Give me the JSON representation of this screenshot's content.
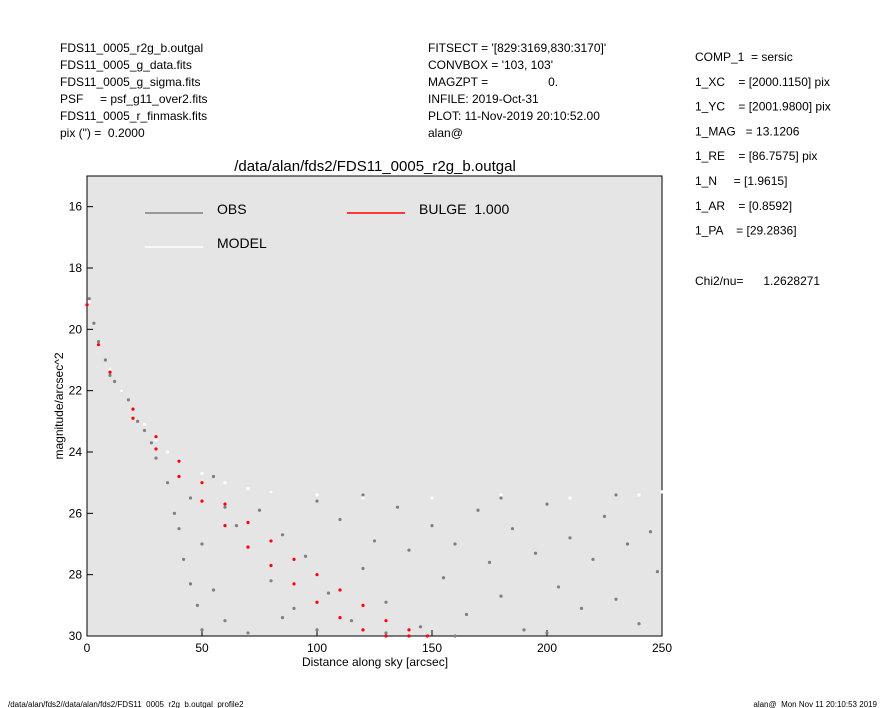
{
  "header": {
    "left": [
      "FDS11_0005_r2g_b.outgal",
      "FDS11_0005_g_data.fits",
      "FDS11_0005_g_sigma.fits",
      "PSF     = psf_g11_over2.fits",
      "FDS11_0005_r_finmask.fits",
      "pix (\") =  0.2000"
    ],
    "center": [
      "FITSECT = '[829:3169,830:3170]'",
      "CONVBOX = '103, 103'",
      "MAGZPT =                  0.",
      "INFILE: 2019-Oct-31",
      "PLOT: 11-Nov-2019 20:10:52.00",
      "alan@"
    ],
    "params": [
      "COMP_1  = sersic",
      "1_XC    = [2000.1150] pix",
      "1_YC    = [2001.9800] pix",
      "1_MAG   = 13.1206",
      "1_RE    = [86.7575] pix",
      "1_N     = [1.9615]",
      "1_AR    = [0.8592]",
      "1_PA    = [29.2836]"
    ],
    "chi2": "Chi2/nu=      1.2628271"
  },
  "footer": {
    "left": "/data/alan/fds2//data/alan/fds2/FDS11_0005_r2g_b.outgal_profile2",
    "right": "alan@  Mon Nov 11 20:10:53 2019"
  },
  "chart_data": {
    "type": "scatter",
    "title": "/data/alan/fds2/FDS11_0005_r2g_b.outgal",
    "x_label": "Distance along sky [arcsec]",
    "y_label": "magnitude/arcsec^2",
    "xlim": [
      0,
      250
    ],
    "ylim": [
      30,
      15
    ],
    "xticks": [
      0,
      50,
      100,
      150,
      200,
      250
    ],
    "yticks": [
      16,
      18,
      20,
      22,
      24,
      26,
      28,
      30
    ],
    "series": [
      {
        "name": "OBS",
        "color": "#808080",
        "x": [
          1,
          3,
          5,
          8,
          10,
          12,
          15,
          18,
          20,
          22,
          25,
          28,
          30,
          35,
          38,
          40,
          42,
          45,
          48,
          50,
          45,
          55,
          60,
          65,
          70,
          75,
          80,
          85,
          90,
          95,
          100,
          105,
          110,
          115,
          120,
          125,
          130,
          135,
          140,
          145,
          150,
          155,
          160,
          165,
          170,
          175,
          180,
          185,
          190,
          195,
          200,
          205,
          210,
          215,
          220,
          225,
          230,
          235,
          240,
          245,
          248,
          60,
          70,
          85,
          100,
          130,
          160,
          200,
          80,
          120,
          180,
          230,
          50,
          55
        ],
        "values": [
          19,
          19.8,
          20.4,
          21,
          21.5,
          21.7,
          22,
          22.3,
          22.6,
          23,
          23.3,
          23.7,
          24.2,
          25,
          26,
          26.5,
          27.5,
          28.3,
          29,
          29.8,
          25.5,
          24.8,
          25.8,
          26.4,
          27.1,
          25.9,
          28.2,
          26.7,
          29.1,
          27.4,
          25.6,
          28.6,
          26.2,
          29.5,
          27.8,
          26.9,
          28.9,
          25.8,
          27.2,
          29.7,
          26.4,
          28.1,
          27,
          29.3,
          25.9,
          27.6,
          28.7,
          26.5,
          29.8,
          27.3,
          25.7,
          28.4,
          26.8,
          29.1,
          27.5,
          26.1,
          28.8,
          27,
          29.6,
          26.6,
          27.9,
          29.5,
          29.9,
          29.4,
          29.8,
          29.9,
          30,
          29.9,
          25.3,
          25.4,
          25.5,
          25.4,
          27,
          28.5
        ]
      },
      {
        "name": "MODEL",
        "color": "#ffffff",
        "x": [
          1,
          5,
          10,
          15,
          20,
          25,
          30,
          35,
          40,
          50,
          60,
          70,
          80,
          100,
          120,
          150,
          180,
          210,
          240,
          250
        ],
        "values": [
          19.1,
          20.5,
          21.3,
          22,
          22.6,
          23.1,
          23.6,
          24,
          24.3,
          24.7,
          25,
          25.2,
          25.3,
          25.4,
          25.5,
          25.5,
          25.4,
          25.5,
          25.4,
          25.3
        ]
      },
      {
        "name": "BULGE  1.000",
        "color": "#ff0000",
        "x": [
          0,
          5,
          10,
          20,
          30,
          40,
          50,
          60,
          70,
          80,
          90,
          100,
          110,
          120,
          130,
          140,
          148,
          20,
          30,
          40,
          50,
          60,
          70,
          80,
          90,
          100,
          110,
          120,
          130,
          140
        ],
        "values": [
          19.2,
          20.5,
          21.4,
          22.6,
          23.5,
          24.3,
          25,
          25.7,
          26.3,
          26.9,
          27.5,
          28,
          28.5,
          29,
          29.5,
          29.8,
          30,
          22.9,
          23.9,
          24.8,
          25.6,
          26.4,
          27.1,
          27.7,
          28.3,
          28.9,
          29.4,
          29.8,
          30,
          30
        ]
      }
    ]
  }
}
